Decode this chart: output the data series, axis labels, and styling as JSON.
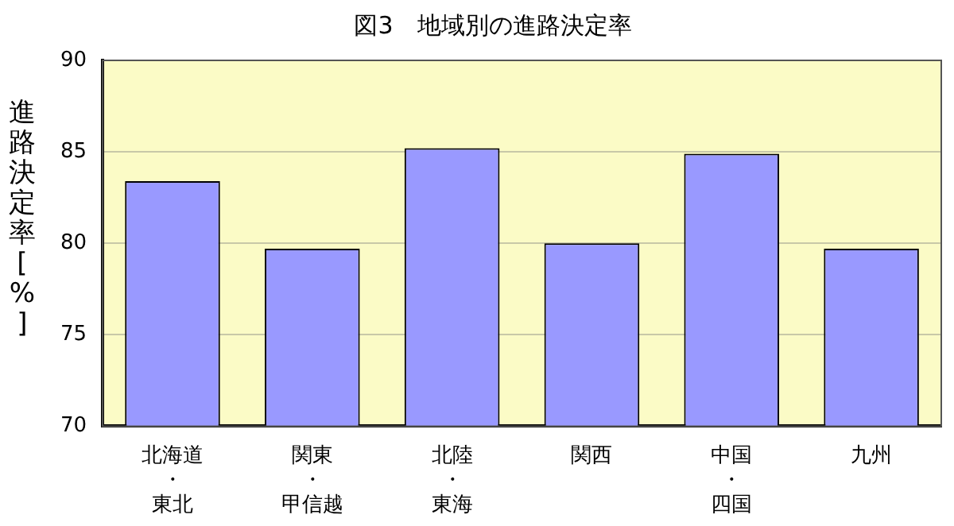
{
  "chart_data": {
    "type": "bar",
    "title": "図3　地域別の進路決定率",
    "ylabel": "進路決定率[%]",
    "categories": [
      "北海道・東北",
      "関東・甲信越",
      "北陸・東海",
      "関西",
      "中国・四国",
      "九州"
    ],
    "values": [
      83.4,
      79.7,
      85.2,
      80.0,
      84.9,
      79.7
    ],
    "color": "#9999ff",
    "ylim": [
      70,
      90
    ],
    "yticks": [
      70,
      75,
      80,
      85,
      90
    ],
    "grid": "y",
    "legend": false
  }
}
